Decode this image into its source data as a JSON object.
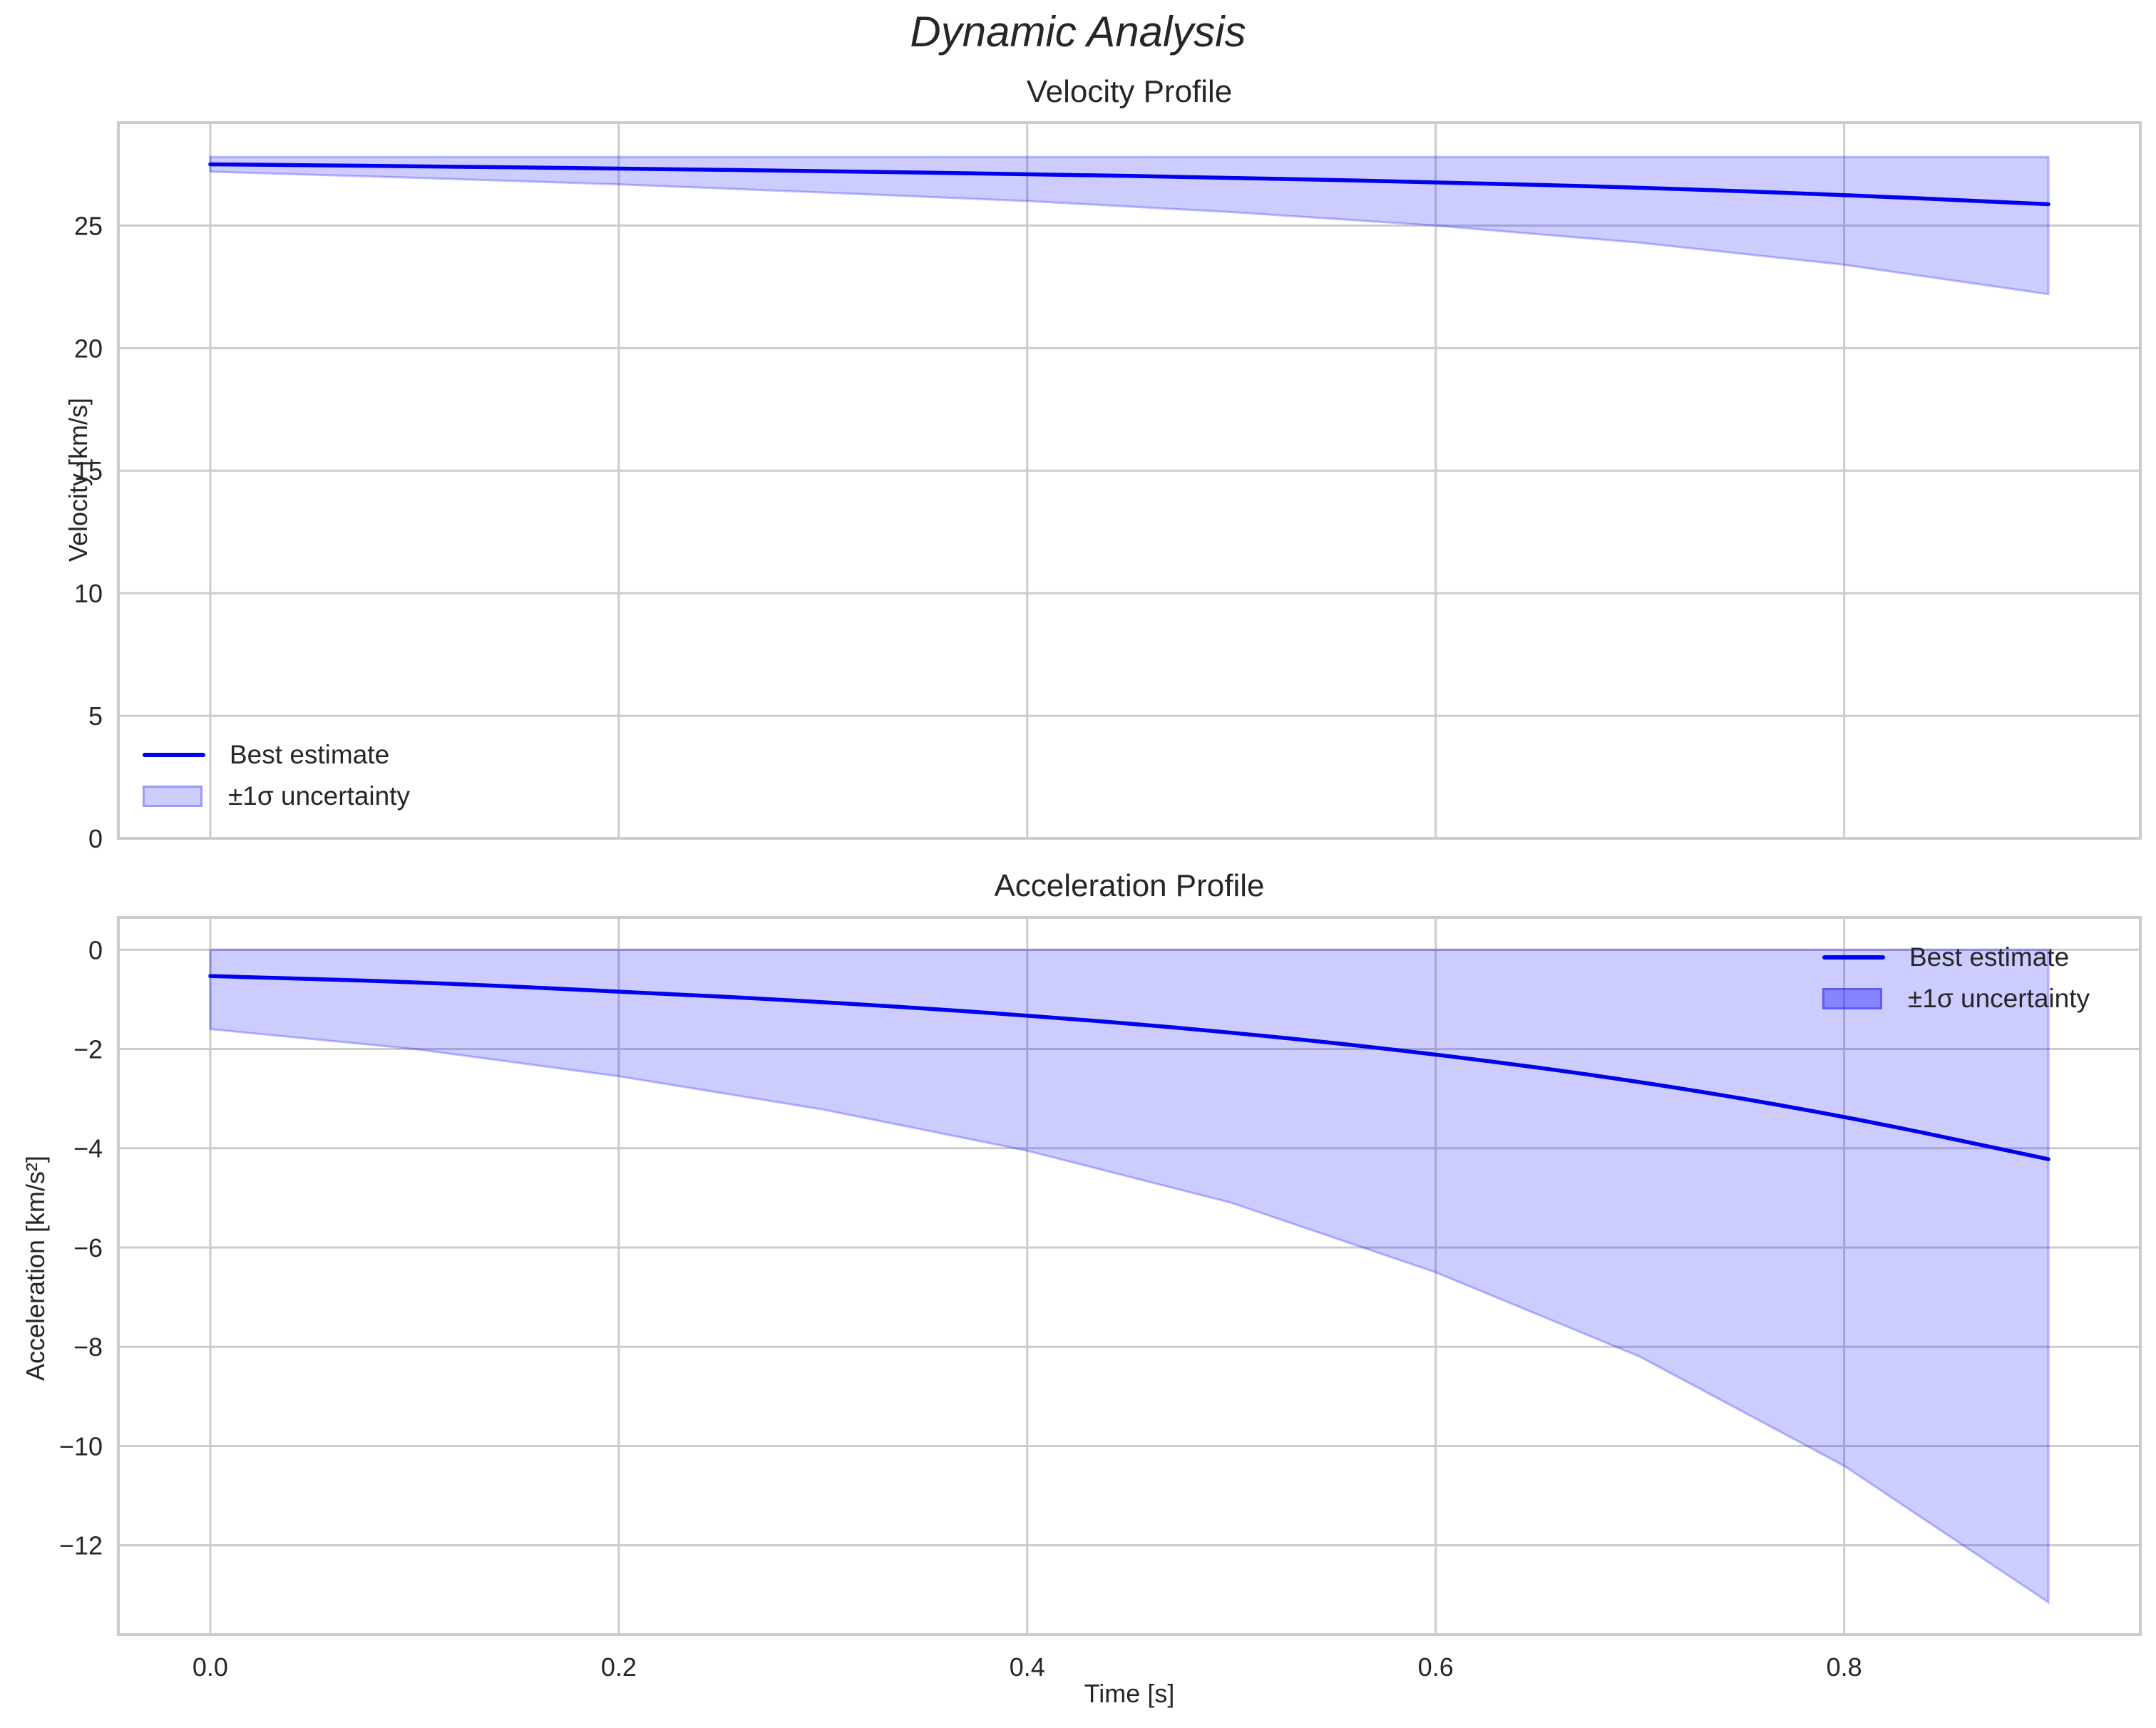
{
  "figure": {
    "title": "Dynamic Analysis"
  },
  "colors": {
    "line": "#0000ee",
    "band_fill": "rgba(0,0,255,0.2)",
    "grid": "#cccccc",
    "spine": "#cccccc",
    "text": "#262626"
  },
  "chart_data": [
    {
      "type": "line",
      "title": "Velocity Profile",
      "xlabel": "",
      "ylabel": "Velocity [km/s]",
      "xlim": [
        -0.045,
        0.945
      ],
      "ylim": [
        0,
        29.2
      ],
      "xticks": [
        0.0,
        0.2,
        0.4,
        0.6,
        0.8
      ],
      "xtick_labels_visible": false,
      "yticks": [
        0,
        5,
        10,
        15,
        20,
        25
      ],
      "ytick_labels": [
        "0",
        "5",
        "10",
        "15",
        "20",
        "25"
      ],
      "grid": true,
      "legend_position": "lower left",
      "legend": [
        "Best estimate",
        "±1σ uncertainty"
      ],
      "x": [
        0.0,
        0.1,
        0.2,
        0.3,
        0.4,
        0.5,
        0.6,
        0.7,
        0.8,
        0.9
      ],
      "series": [
        {
          "name": "Best estimate",
          "values": [
            27.5,
            27.42,
            27.33,
            27.22,
            27.1,
            26.95,
            26.77,
            26.55,
            26.25,
            25.87
          ]
        },
        {
          "name": "±1σ lower",
          "values": [
            27.2,
            26.95,
            26.68,
            26.35,
            26.0,
            25.55,
            25.0,
            24.3,
            23.4,
            22.2
          ]
        },
        {
          "name": "±1σ upper",
          "values": [
            27.8,
            27.8,
            27.8,
            27.8,
            27.8,
            27.8,
            27.8,
            27.8,
            27.8,
            27.8
          ]
        }
      ]
    },
    {
      "type": "line",
      "title": "Acceleration Profile",
      "xlabel": "Time [s]",
      "ylabel": "Acceleration [km/s²]",
      "xlim": [
        -0.045,
        0.945
      ],
      "ylim": [
        -13.8,
        0.65
      ],
      "xticks": [
        0.0,
        0.2,
        0.4,
        0.6,
        0.8
      ],
      "xtick_labels": [
        "0.0",
        "0.2",
        "0.4",
        "0.6",
        "0.8"
      ],
      "yticks": [
        0,
        -2,
        -4,
        -6,
        -8,
        -10,
        -12
      ],
      "ytick_labels": [
        "0",
        "−2",
        "−4",
        "−6",
        "−8",
        "−10",
        "−12"
      ],
      "grid": true,
      "legend_position": "upper right",
      "legend": [
        "Best estimate",
        "±1σ uncertainty"
      ],
      "x": [
        0.0,
        0.1,
        0.2,
        0.3,
        0.4,
        0.5,
        0.6,
        0.7,
        0.8,
        0.9
      ],
      "series": [
        {
          "name": "Best estimate",
          "values": [
            -0.53,
            -0.65,
            -0.84,
            -1.05,
            -1.32,
            -1.66,
            -2.1,
            -2.65,
            -3.35,
            -4.22
          ]
        },
        {
          "name": "±1σ lower",
          "values": [
            -1.6,
            -2.0,
            -2.55,
            -3.22,
            -4.05,
            -5.1,
            -6.5,
            -8.2,
            -10.4,
            -13.15
          ]
        },
        {
          "name": "±1σ upper",
          "values": [
            0,
            0,
            0,
            0,
            0,
            0,
            0,
            0,
            0,
            0
          ]
        }
      ]
    }
  ]
}
